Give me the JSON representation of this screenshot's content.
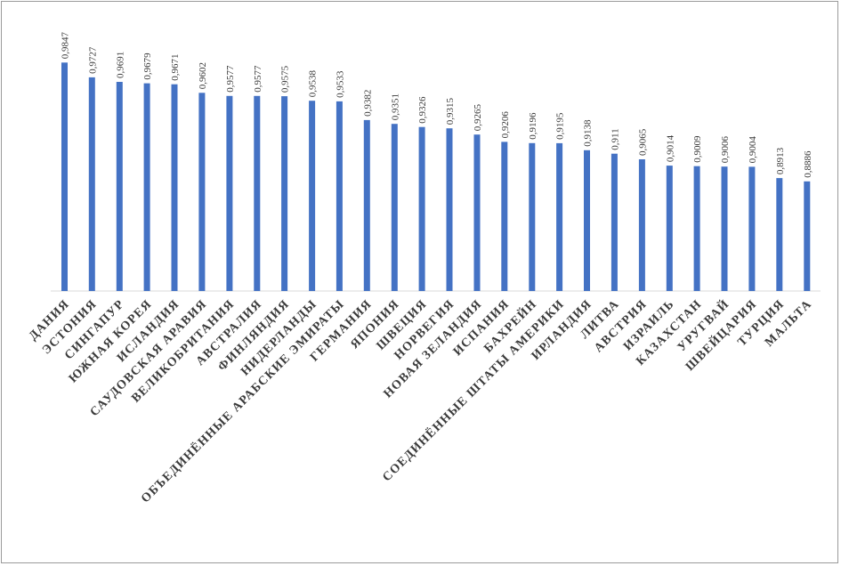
{
  "chart_data": {
    "type": "bar",
    "categories": [
      "ДАНИЯ",
      "ЭСТОНИЯ",
      "СИНГАПУР",
      "ЮЖНАЯ КОРЕЯ",
      "ИСЛАНДИЯ",
      "САУДОВСКАЯ  АРАВИЯ",
      "ВЕЛИКОБРИТАНИЯ",
      "АВСТРАЛИЯ",
      "ФИНЛЯНДИЯ",
      "НИДЕРЛАНДЫ",
      "ОБЪЕДИНЁННЫЕ  АРАБСКИЕ  ЭМИРАТЫ",
      "ГЕРМАНИЯ",
      "ЯПОНИЯ",
      "ШВЕЦИЯ",
      "НОРВЕГИЯ",
      "НОВАЯ  ЗЕЛАНДИЯ",
      "ИСПАНИЯ",
      "БАХРЕЙН",
      "СОЕДИНЁННЫЕ  ШТАТЫ  АМЕРИКИ",
      "ИРЛАНДИЯ",
      "ЛИТВА",
      "АВСТРИЯ",
      "ИЗРАИЛЬ",
      "КАЗАХСТАН",
      "УРУГВАЙ",
      "ШВЕЙЦАРИЯ",
      "ТУРЦИЯ",
      "МАЛЬТА"
    ],
    "values": [
      0.9847,
      0.9727,
      0.9691,
      0.9679,
      0.9671,
      0.9602,
      0.9577,
      0.9577,
      0.9575,
      0.9538,
      0.9533,
      0.9382,
      0.9351,
      0.9326,
      0.9315,
      0.9265,
      0.9206,
      0.9196,
      0.9195,
      0.9138,
      0.911,
      0.9065,
      0.9014,
      0.9009,
      0.9006,
      0.9004,
      0.8913,
      0.8886
    ],
    "value_labels": [
      "0,9847",
      "0,9727",
      "0,9691",
      "0,9679",
      "0,9671",
      "0,9602",
      "0,9577",
      "0,9577",
      "0,9575",
      "0,9538",
      "0,9533",
      "0,9382",
      "0,9351",
      "0,9326",
      "0,9315",
      "0,9265",
      "0,9206",
      "0,9196",
      "0,9195",
      "0,9138",
      "0,911",
      "0,9065",
      "0,9014",
      "0,9009",
      "0,9006",
      "0,9004",
      "0,8913",
      "0,8886"
    ],
    "ylim": [
      0.8,
      1.0
    ],
    "colors": {
      "bar": "#4472c4",
      "axis": "#d9d9d9"
    },
    "grid": false,
    "legend": "none"
  }
}
